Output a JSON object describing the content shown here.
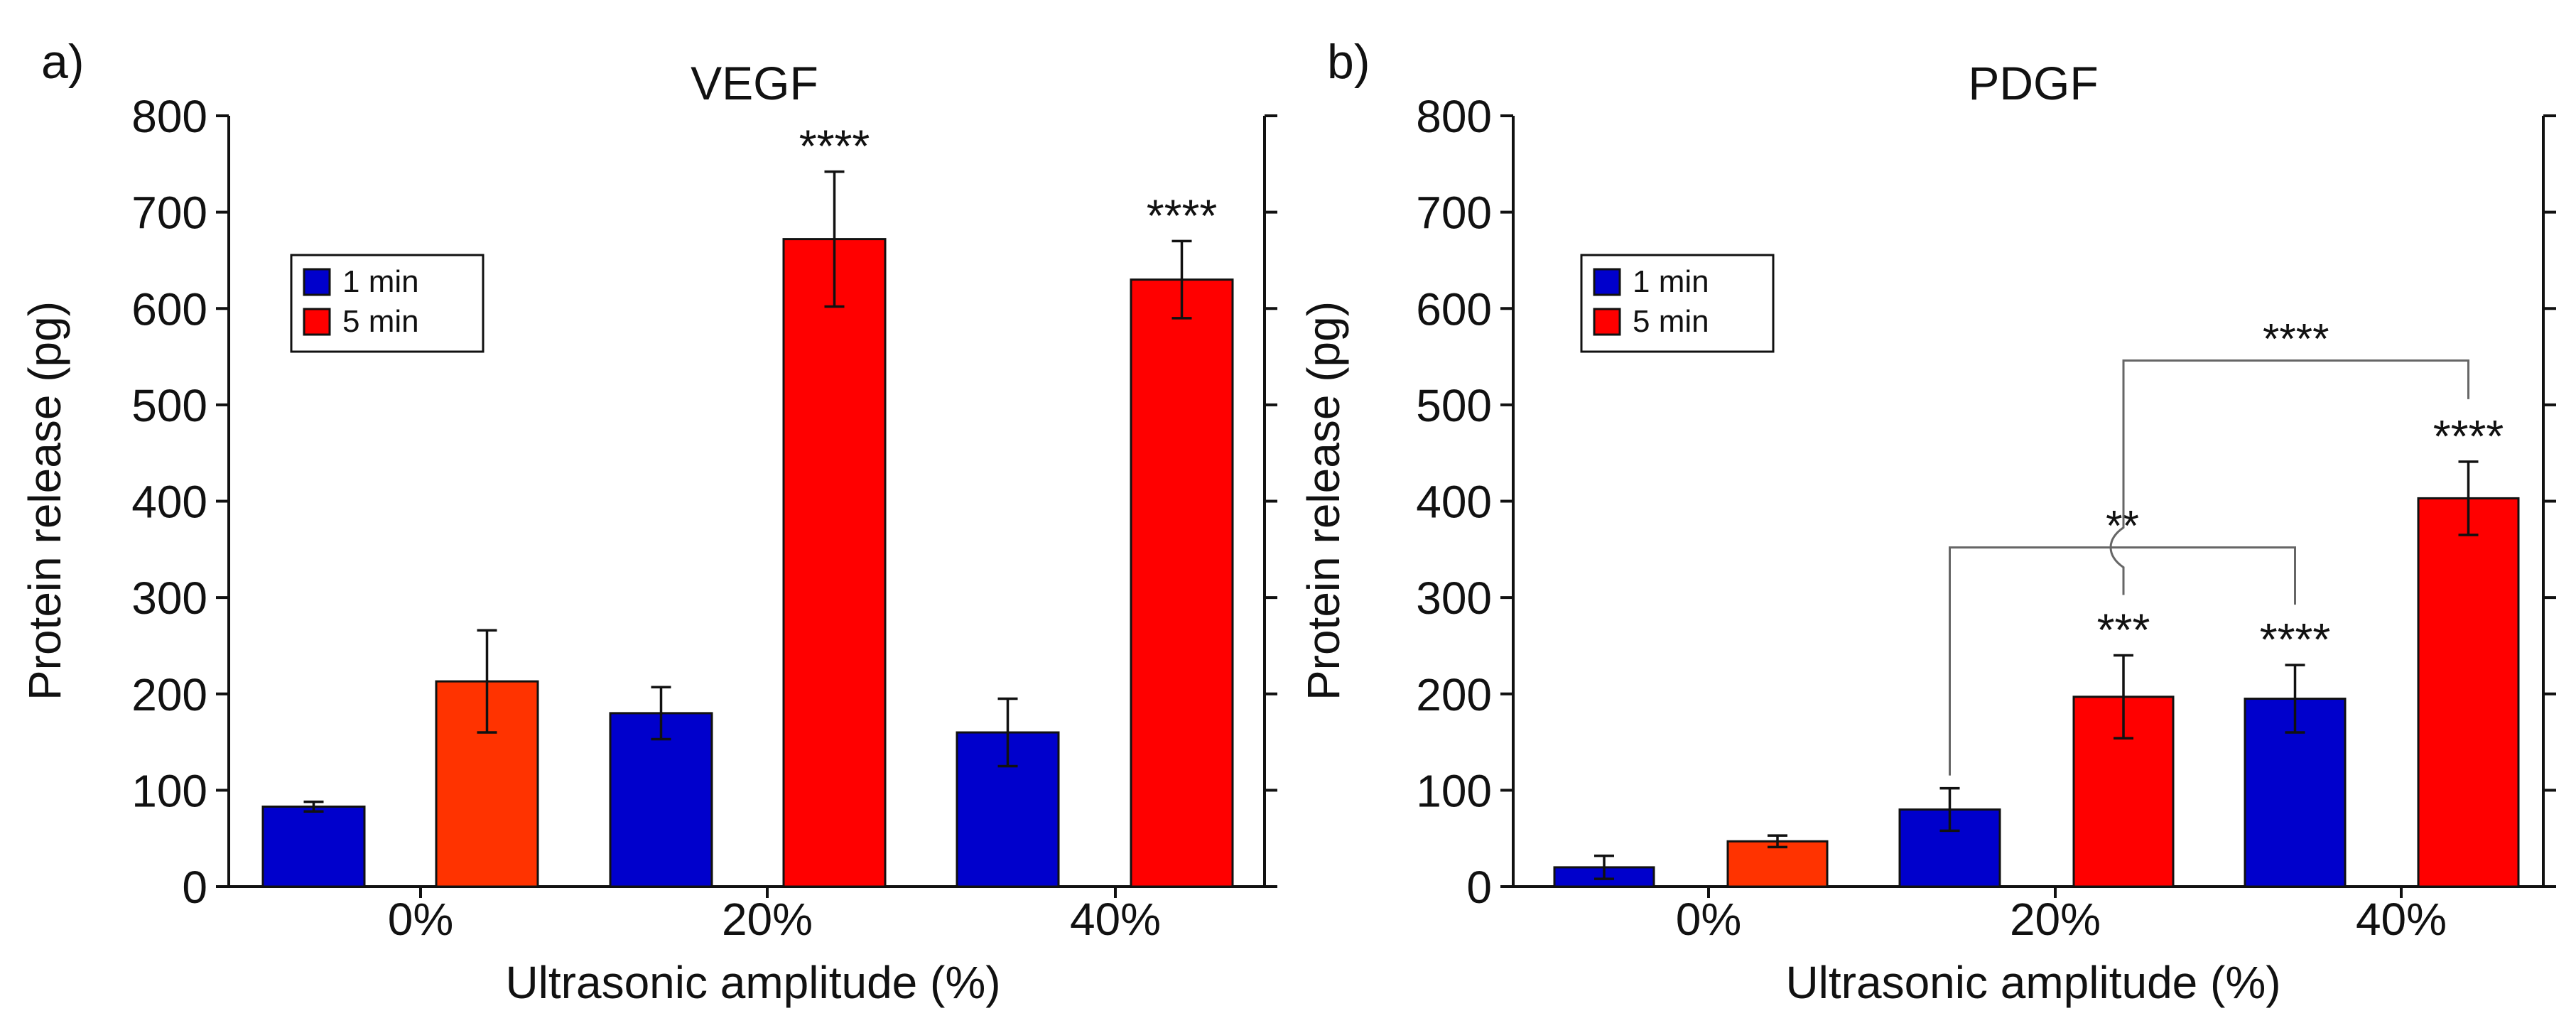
{
  "colors": {
    "blue": "#0000CC",
    "red": "#FF0000",
    "orange_red": "#FF3300"
  },
  "chart_data": [
    {
      "type": "bar",
      "panel_label": "a)",
      "title": "VEGF",
      "xlabel": "Ultrasonic amplitude (%)",
      "ylabel": "Protein release (pg)",
      "ylim": [
        0,
        800
      ],
      "yticks": [
        "0",
        "100",
        "200",
        "300",
        "400",
        "500",
        "600",
        "700",
        "800"
      ],
      "categories": [
        "0%",
        "20%",
        "40%"
      ],
      "legend": {
        "placement": "upper-left",
        "entries": [
          "1 min",
          "5 min"
        ]
      },
      "series": [
        {
          "name": "1 min",
          "color": "#0000CC",
          "values": [
            83,
            180,
            160
          ],
          "errors": [
            5,
            27,
            35
          ],
          "annotations": [
            "",
            "",
            ""
          ]
        },
        {
          "name": "5 min",
          "colors": [
            "#FF3300",
            "#FF0000",
            "#FF0000"
          ],
          "values": [
            213,
            672,
            630
          ],
          "errors": [
            53,
            70,
            40
          ],
          "annotations": [
            "",
            "****",
            "****"
          ]
        }
      ],
      "brackets": []
    },
    {
      "type": "bar",
      "panel_label": "b)",
      "title": "PDGF",
      "xlabel": "Ultrasonic amplitude (%)",
      "ylabel": "Protein release (pg)",
      "ylim": [
        0,
        800
      ],
      "yticks": [
        "0",
        "100",
        "200",
        "300",
        "400",
        "500",
        "600",
        "700",
        "800"
      ],
      "categories": [
        "0%",
        "20%",
        "40%"
      ],
      "legend": {
        "placement": "upper-left",
        "entries": [
          "1 min",
          "5 min"
        ]
      },
      "series": [
        {
          "name": "1 min",
          "color": "#0000CC",
          "values": [
            20,
            80,
            195
          ],
          "errors": [
            12,
            22,
            35
          ],
          "annotations": [
            "",
            "",
            "****"
          ]
        },
        {
          "name": "5 min",
          "colors": [
            "#FF3300",
            "#FF0000",
            "#FF0000"
          ],
          "values": [
            47,
            197,
            403
          ],
          "errors": [
            6,
            43,
            38
          ],
          "annotations": [
            "",
            "***",
            "****"
          ]
        }
      ],
      "brackets": [
        {
          "from": "20% / 1 min",
          "to": "40% / 1 min",
          "y": 352,
          "label": "**"
        },
        {
          "from": "20% / 5 min",
          "to": "40% / 5 min",
          "y": 546,
          "label": "****"
        }
      ]
    }
  ]
}
